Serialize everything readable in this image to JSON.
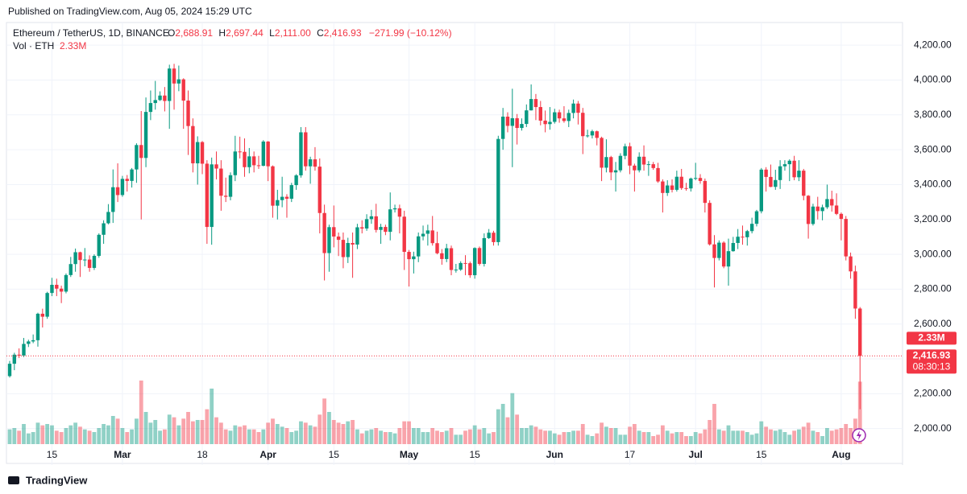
{
  "published": "Published on TradingView.com, Aug 05, 2024 15:29 UTC",
  "footer": "TradingView",
  "chart_data": {
    "type": "candlestick",
    "title": "Ethereum / TetherUS, 1D, BINANCE",
    "legend": {
      "o_label": "O",
      "o": "2,688.91",
      "h_label": "H",
      "h": "2,697.44",
      "l_label": "L",
      "l": "2,111.00",
      "c_label": "C",
      "c": "2,416.93",
      "change": "−271.99 (−10.12%)"
    },
    "volume_title": "Vol · ETH",
    "volume_label": "2.33M",
    "last_price_label": "2,416.93",
    "countdown": "08:30:13",
    "up_color": "#089981",
    "down_color": "#f23645",
    "ylim": [
      1800,
      4330
    ],
    "yticks": [
      {
        "value": 2000,
        "label": "2,000.00"
      },
      {
        "value": 2200,
        "label": "2,200.00"
      },
      {
        "value": 2400,
        "label": "2,400.00"
      },
      {
        "value": 2600,
        "label": "2,600.00"
      },
      {
        "value": 2800,
        "label": "2,800.00"
      },
      {
        "value": 3000,
        "label": "3,000.00"
      },
      {
        "value": 3200,
        "label": "3,200.00"
      },
      {
        "value": 3400,
        "label": "3,400.00"
      },
      {
        "value": 3600,
        "label": "3,600.00"
      },
      {
        "value": 3800,
        "label": "3,800.00"
      },
      {
        "value": 4000,
        "label": "4,000.00"
      },
      {
        "value": 4200,
        "label": "4,200.00"
      }
    ],
    "xticks": [
      {
        "value": 9,
        "label": "15"
      },
      {
        "value": 24,
        "label": "Mar"
      },
      {
        "value": 41,
        "label": "18"
      },
      {
        "value": 55,
        "label": "Apr"
      },
      {
        "value": 69,
        "label": "15"
      },
      {
        "value": 85,
        "label": "May"
      },
      {
        "value": 99,
        "label": "15"
      },
      {
        "value": 116,
        "label": "Jun"
      },
      {
        "value": 132,
        "label": "17"
      },
      {
        "value": 146,
        "label": "Jul"
      },
      {
        "value": 160,
        "label": "15"
      },
      {
        "value": 177,
        "label": "Aug"
      }
    ],
    "volume_ylim": [
      0,
      3
    ],
    "ohlc": [
      [
        2301,
        2388,
        2293,
        2372
      ],
      [
        2372,
        2435,
        2335,
        2424
      ],
      [
        2424,
        2460,
        2405,
        2419
      ],
      [
        2419,
        2520,
        2410,
        2486
      ],
      [
        2486,
        2510,
        2468,
        2500
      ],
      [
        2500,
        2540,
        2490,
        2507
      ],
      [
        2507,
        2665,
        2470,
        2659
      ],
      [
        2659,
        2688,
        2580,
        2642
      ],
      [
        2642,
        2785,
        2630,
        2778
      ],
      [
        2778,
        2865,
        2760,
        2825
      ],
      [
        2825,
        2860,
        2760,
        2803
      ],
      [
        2803,
        2820,
        2720,
        2786
      ],
      [
        2786,
        2890,
        2776,
        2881
      ],
      [
        2881,
        2985,
        2870,
        2944
      ],
      [
        2944,
        3033,
        2900,
        3012
      ],
      [
        3012,
        3015,
        2870,
        2967
      ],
      [
        2967,
        3036,
        2931,
        2970
      ],
      [
        2970,
        2994,
        2900,
        2922
      ],
      [
        2922,
        3000,
        2910,
        2991
      ],
      [
        2991,
        3120,
        2980,
        3112
      ],
      [
        3112,
        3195,
        3060,
        3178
      ],
      [
        3178,
        3288,
        3172,
        3243
      ],
      [
        3243,
        3487,
        3180,
        3385
      ],
      [
        3385,
        3522,
        3300,
        3340
      ],
      [
        3340,
        3450,
        3330,
        3433
      ],
      [
        3433,
        3455,
        3360,
        3421
      ],
      [
        3421,
        3495,
        3383,
        3487
      ],
      [
        3487,
        3637,
        3410,
        3627
      ],
      [
        3627,
        3822,
        3200,
        3553
      ],
      [
        3553,
        3900,
        3500,
        3817
      ],
      [
        3817,
        3940,
        3770,
        3868
      ],
      [
        3868,
        3995,
        3830,
        3885
      ],
      [
        3885,
        3935,
        3880,
        3911
      ],
      [
        3911,
        3960,
        3820,
        3880
      ],
      [
        3880,
        4088,
        3720,
        4066
      ],
      [
        4066,
        4093,
        3830,
        3980
      ],
      [
        3980,
        4083,
        3936,
        4004
      ],
      [
        4004,
        4010,
        3720,
        3882
      ],
      [
        3882,
        3940,
        3570,
        3736
      ],
      [
        3736,
        3780,
        3470,
        3522
      ],
      [
        3522,
        3677,
        3400,
        3644
      ],
      [
        3644,
        3650,
        3460,
        3520
      ],
      [
        3520,
        3540,
        3060,
        3157
      ],
      [
        3157,
        3555,
        3055,
        3516
      ],
      [
        3516,
        3590,
        3430,
        3492
      ],
      [
        3492,
        3540,
        3250,
        3336
      ],
      [
        3336,
        3440,
        3300,
        3330
      ],
      [
        3330,
        3470,
        3310,
        3454
      ],
      [
        3454,
        3680,
        3420,
        3590
      ],
      [
        3590,
        3675,
        3550,
        3588
      ],
      [
        3588,
        3665,
        3445,
        3500
      ],
      [
        3500,
        3610,
        3465,
        3562
      ],
      [
        3562,
        3590,
        3470,
        3511
      ],
      [
        3511,
        3565,
        3490,
        3508
      ],
      [
        3508,
        3655,
        3505,
        3647
      ],
      [
        3647,
        3650,
        3420,
        3505
      ],
      [
        3505,
        3510,
        3210,
        3279
      ],
      [
        3279,
        3370,
        3200,
        3311
      ],
      [
        3311,
        3445,
        3270,
        3330
      ],
      [
        3330,
        3345,
        3210,
        3319
      ],
      [
        3319,
        3410,
        3300,
        3397
      ],
      [
        3397,
        3460,
        3370,
        3453
      ],
      [
        3453,
        3730,
        3440,
        3700
      ],
      [
        3700,
        3730,
        3480,
        3505
      ],
      [
        3505,
        3560,
        3405,
        3545
      ],
      [
        3545,
        3615,
        3480,
        3503
      ],
      [
        3503,
        3550,
        3120,
        3237
      ],
      [
        3237,
        3285,
        2850,
        3007
      ],
      [
        3007,
        3170,
        2900,
        3156
      ],
      [
        3156,
        3280,
        3040,
        3102
      ],
      [
        3102,
        3125,
        2990,
        3083
      ],
      [
        3083,
        3125,
        2920,
        2984
      ],
      [
        2984,
        3095,
        2950,
        3065
      ],
      [
        3065,
        3125,
        2865,
        3056
      ],
      [
        3056,
        3175,
        3030,
        3155
      ],
      [
        3155,
        3195,
        3120,
        3148
      ],
      [
        3148,
        3230,
        3135,
        3202
      ],
      [
        3202,
        3255,
        3175,
        3218
      ],
      [
        3218,
        3290,
        3125,
        3140
      ],
      [
        3140,
        3175,
        3060,
        3157
      ],
      [
        3157,
        3170,
        3110,
        3129
      ],
      [
        3129,
        3355,
        3080,
        3258
      ],
      [
        3258,
        3285,
        3240,
        3264
      ],
      [
        3264,
        3285,
        3120,
        3216
      ],
      [
        3216,
        3250,
        2910,
        3014
      ],
      [
        3014,
        3025,
        2815,
        2972
      ],
      [
        2972,
        3015,
        2890,
        2988
      ],
      [
        2988,
        3125,
        2955,
        3103
      ],
      [
        3103,
        3165,
        3080,
        3118
      ],
      [
        3118,
        3170,
        3050,
        3137
      ],
      [
        3137,
        3220,
        3050,
        3064
      ],
      [
        3064,
        3130,
        3000,
        3006
      ],
      [
        3006,
        3030,
        2940,
        2973
      ],
      [
        2973,
        3060,
        2955,
        3035
      ],
      [
        3035,
        3050,
        2880,
        2910
      ],
      [
        2910,
        2945,
        2895,
        2912
      ],
      [
        2912,
        2960,
        2905,
        2950
      ],
      [
        2950,
        2995,
        2880,
        2949
      ],
      [
        2949,
        2958,
        2865,
        2880
      ],
      [
        2880,
        3040,
        2860,
        3036
      ],
      [
        3036,
        3045,
        2935,
        2945
      ],
      [
        2945,
        3120,
        2930,
        3093
      ],
      [
        3093,
        3145,
        3088,
        3124
      ],
      [
        3124,
        3135,
        3050,
        3070
      ],
      [
        3070,
        3680,
        3050,
        3662
      ],
      [
        3662,
        3840,
        3600,
        3790
      ],
      [
        3790,
        3815,
        3700,
        3737
      ],
      [
        3737,
        3950,
        3500,
        3781
      ],
      [
        3781,
        3805,
        3630,
        3725
      ],
      [
        3725,
        3780,
        3710,
        3748
      ],
      [
        3748,
        3860,
        3730,
        3826
      ],
      [
        3826,
        3975,
        3825,
        3891
      ],
      [
        3891,
        3920,
        3770,
        3845
      ],
      [
        3845,
        3880,
        3740,
        3767
      ],
      [
        3767,
        3825,
        3700,
        3747
      ],
      [
        3747,
        3845,
        3715,
        3760
      ],
      [
        3760,
        3835,
        3750,
        3815
      ],
      [
        3815,
        3830,
        3755,
        3780
      ],
      [
        3780,
        3850,
        3755,
        3765
      ],
      [
        3765,
        3830,
        3730,
        3811
      ],
      [
        3811,
        3888,
        3780,
        3865
      ],
      [
        3865,
        3880,
        3745,
        3812
      ],
      [
        3812,
        3840,
        3575,
        3678
      ],
      [
        3678,
        3715,
        3670,
        3682
      ],
      [
        3682,
        3715,
        3665,
        3706
      ],
      [
        3706,
        3710,
        3625,
        3668
      ],
      [
        3668,
        3675,
        3420,
        3497
      ],
      [
        3497,
        3660,
        3470,
        3558
      ],
      [
        3558,
        3565,
        3425,
        3470
      ],
      [
        3470,
        3530,
        3360,
        3482
      ],
      [
        3482,
        3580,
        3470,
        3565
      ],
      [
        3565,
        3635,
        3545,
        3620
      ],
      [
        3620,
        3640,
        3460,
        3509
      ],
      [
        3509,
        3520,
        3360,
        3482
      ],
      [
        3482,
        3585,
        3470,
        3560
      ],
      [
        3560,
        3625,
        3480,
        3515
      ],
      [
        3515,
        3535,
        3450,
        3517
      ],
      [
        3517,
        3530,
        3485,
        3495
      ],
      [
        3495,
        3525,
        3410,
        3418
      ],
      [
        3418,
        3430,
        3240,
        3352
      ],
      [
        3352,
        3425,
        3335,
        3395
      ],
      [
        3395,
        3430,
        3355,
        3370
      ],
      [
        3370,
        3480,
        3360,
        3445
      ],
      [
        3445,
        3490,
        3370,
        3380
      ],
      [
        3380,
        3410,
        3365,
        3378
      ],
      [
        3378,
        3440,
        3360,
        3435
      ],
      [
        3435,
        3525,
        3425,
        3438
      ],
      [
        3438,
        3460,
        3405,
        3421
      ],
      [
        3421,
        3435,
        3240,
        3295
      ],
      [
        3295,
        3310,
        3050,
        3057
      ],
      [
        3057,
        3110,
        2810,
        2979
      ],
      [
        2979,
        3080,
        2965,
        3067
      ],
      [
        3067,
        3075,
        2920,
        2930
      ],
      [
        2930,
        3090,
        2820,
        3018
      ],
      [
        3018,
        3100,
        3015,
        3065
      ],
      [
        3065,
        3145,
        3030,
        3101
      ],
      [
        3101,
        3165,
        3055,
        3098
      ],
      [
        3098,
        3140,
        3050,
        3133
      ],
      [
        3133,
        3210,
        3120,
        3175
      ],
      [
        3175,
        3255,
        3160,
        3247
      ],
      [
        3247,
        3495,
        3235,
        3486
      ],
      [
        3486,
        3500,
        3360,
        3444
      ],
      [
        3444,
        3515,
        3385,
        3387
      ],
      [
        3387,
        3485,
        3370,
        3426
      ],
      [
        3426,
        3540,
        3375,
        3505
      ],
      [
        3505,
        3540,
        3480,
        3517
      ],
      [
        3517,
        3545,
        3420,
        3537
      ],
      [
        3537,
        3565,
        3425,
        3442
      ],
      [
        3442,
        3540,
        3420,
        3480
      ],
      [
        3480,
        3490,
        3310,
        3336
      ],
      [
        3336,
        3340,
        3090,
        3174
      ],
      [
        3174,
        3290,
        3165,
        3274
      ],
      [
        3274,
        3330,
        3200,
        3248
      ],
      [
        3248,
        3285,
        3195,
        3270
      ],
      [
        3270,
        3400,
        3260,
        3317
      ],
      [
        3317,
        3365,
        3245,
        3280
      ],
      [
        3280,
        3350,
        3225,
        3232
      ],
      [
        3232,
        3240,
        3080,
        3203
      ],
      [
        3203,
        3220,
        2965,
        2988
      ],
      [
        2988,
        3010,
        2860,
        2902
      ],
      [
        2902,
        2935,
        2630,
        2688.91
      ],
      [
        2688.91,
        2697.44,
        2111,
        2416.93
      ]
    ],
    "volumes": [
      0.55,
      0.6,
      0.5,
      0.75,
      0.4,
      0.45,
      0.8,
      0.7,
      0.75,
      0.7,
      0.5,
      0.45,
      0.6,
      0.7,
      0.8,
      0.65,
      0.55,
      0.5,
      0.45,
      0.6,
      0.75,
      0.7,
      1.05,
      0.95,
      0.6,
      0.45,
      0.55,
      0.95,
      2.37,
      1.2,
      0.8,
      0.9,
      0.5,
      0.55,
      1.1,
      1.0,
      0.7,
      0.95,
      1.2,
      0.85,
      0.9,
      0.9,
      1.3,
      2.07,
      1.0,
      0.8,
      0.55,
      0.5,
      0.7,
      0.65,
      0.7,
      0.55,
      0.55,
      0.45,
      0.55,
      0.8,
      0.95,
      0.75,
      0.65,
      0.6,
      0.45,
      0.5,
      0.85,
      0.8,
      0.7,
      0.65,
      1.1,
      1.7,
      1.2,
      0.9,
      0.8,
      0.75,
      0.85,
      0.9,
      0.55,
      0.4,
      0.5,
      0.55,
      0.6,
      0.5,
      0.45,
      0.45,
      0.4,
      0.6,
      0.85,
      0.85,
      0.6,
      0.6,
      0.45,
      0.45,
      0.6,
      0.5,
      0.45,
      0.5,
      0.6,
      0.35,
      0.35,
      0.5,
      0.55,
      0.7,
      0.55,
      0.6,
      0.4,
      0.45,
      1.3,
      1.5,
      1.0,
      1.9,
      1.1,
      0.6,
      0.6,
      0.7,
      0.65,
      0.55,
      0.5,
      0.5,
      0.4,
      0.35,
      0.45,
      0.45,
      0.5,
      0.5,
      0.75,
      0.35,
      0.3,
      0.4,
      0.8,
      0.65,
      0.6,
      0.6,
      0.35,
      0.35,
      0.65,
      0.75,
      0.5,
      0.45,
      0.45,
      0.3,
      0.35,
      0.7,
      0.5,
      0.4,
      0.45,
      0.45,
      0.3,
      0.3,
      0.45,
      0.4,
      0.55,
      0.9,
      1.5,
      0.55,
      0.5,
      0.7,
      0.5,
      0.5,
      0.5,
      0.45,
      0.35,
      0.4,
      0.85,
      0.65,
      0.55,
      0.5,
      0.55,
      0.45,
      0.35,
      0.5,
      0.55,
      0.65,
      0.8,
      0.5,
      0.45,
      0.3,
      0.6,
      0.5,
      0.55,
      0.6,
      0.75,
      0.6,
      0.95,
      2.33
    ]
  }
}
